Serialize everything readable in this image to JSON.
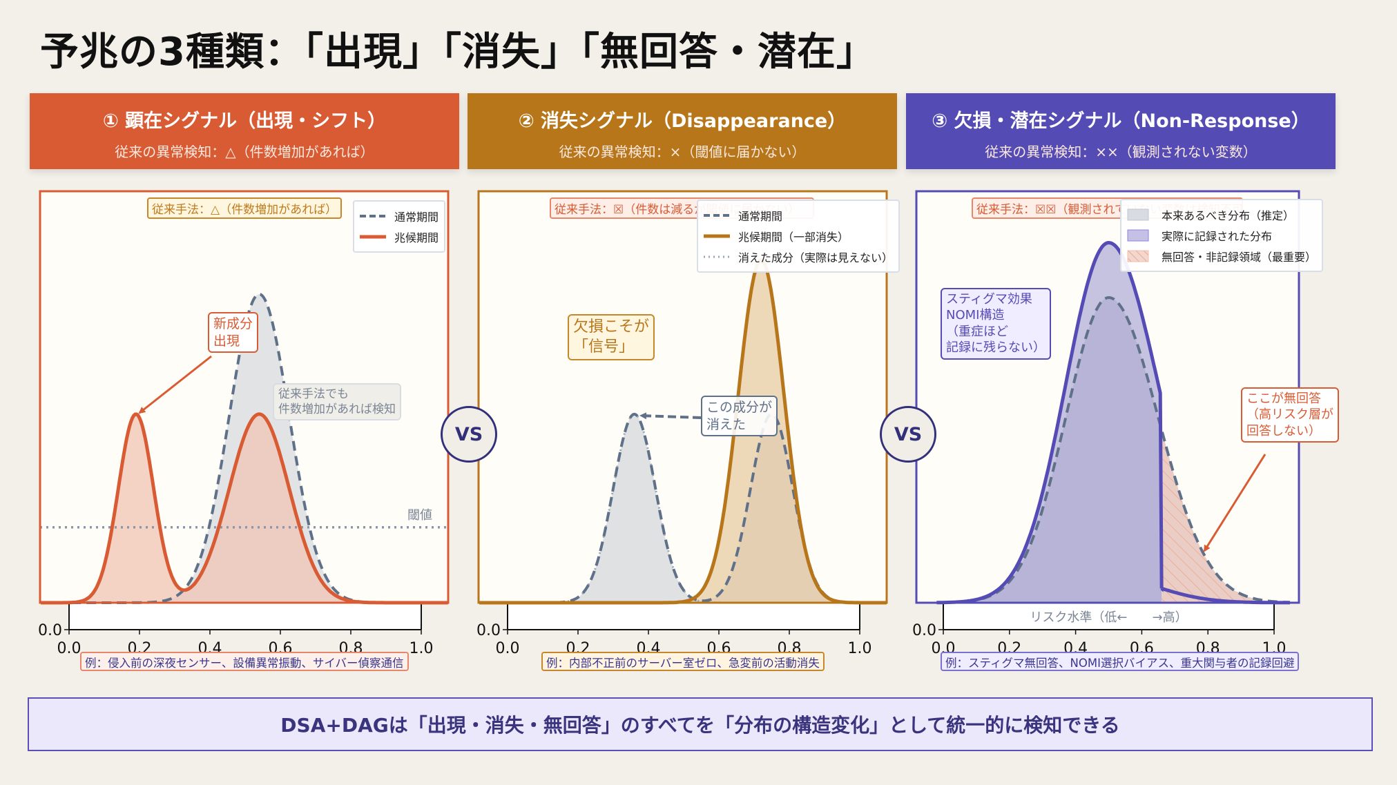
{
  "title": "予兆の3種類：「出現」「消失」「無回答・潜在」",
  "colors": {
    "emergence": "#d95b33",
    "disappearance": "#b8761a",
    "nonresponse": "#544bb5",
    "normal": "#5f7089",
    "background": "#f3f0ea"
  },
  "headers": [
    {
      "title": "① 顕在シグナル（出現・シフト）",
      "subtitle": "従来の異常検知：△（件数増加があれば）"
    },
    {
      "title": "② 消失シグナル（Disappearance）",
      "subtitle": "従来の異常検知：×（閾値に届かない）"
    },
    {
      "title": "③ 欠損・潜在シグナル（Non-Response）",
      "subtitle": "従来の異常検知：××（観測されない変数）"
    }
  ],
  "vs_label": "VS",
  "panels": [
    {
      "method_label": "従来手法：△（件数増加があれば）",
      "legend": [
        "通常期間",
        "兆候期間"
      ],
      "notes": {
        "new": "新成分\n出現",
        "detect": "従来手法でも\n件数増加があれば検知",
        "threshold": "閾値"
      },
      "example": "例：侵入前の深夜センサー、設備異常振動、サイバー偵察通信"
    },
    {
      "method_label": "従来手法：☒（件数は減るが閾値に届かない）",
      "legend": [
        "通常期間",
        "兆候期間（一部消失）",
        "消えた成分（実際は見えない）"
      ],
      "notes": {
        "signal": "欠損こそが\n「信号」",
        "vanished": "この成分が\n消えた"
      },
      "example": "例：内部不正前のサーバー室ゼロ、急変前の活動消失"
    },
    {
      "method_label": "従来手法：☒☒（観測されていない変数は検知不可）",
      "legend": [
        "本来あるべき分布（推定）",
        "実際に記録された分布",
        "無回答・非記録領域（最重要）"
      ],
      "notes": {
        "stigma": "スティグマ効果\nNOMI構造\n（重症ほど\n記録に残らない）",
        "nonresp": "ここが無回答\n（高リスク層が\n回答しない）"
      },
      "xlabel": "リスク水準（低←　　→高）",
      "example": "例：スティグマ無回答、NOMI選択バイアス、重大関与者の記録回避"
    }
  ],
  "banner": "DSA+DAGは「出現・消失・無回答」のすべてを「分布の構造変化」として統一的に検知できる",
  "chart_data": [
    {
      "type": "area",
      "xlim": [
        -0.08,
        1.08
      ],
      "ylim": [
        0,
        1.2
      ],
      "xticks": [
        "0.0",
        "0.2",
        "0.4",
        "0.6",
        "0.8",
        "1.0"
      ],
      "yticks": [
        "0.0"
      ],
      "series": [
        {
          "name": "通常期間",
          "style": "dashed",
          "components": [
            {
              "mean": 0.54,
              "sd": 0.085,
              "amp": 0.9
            }
          ]
        },
        {
          "name": "兆候期間",
          "style": "solid",
          "components": [
            {
              "mean": 0.19,
              "sd": 0.05,
              "amp": 0.55
            },
            {
              "mean": 0.54,
              "sd": 0.085,
              "amp": 0.55
            }
          ]
        }
      ],
      "threshold": 0.22
    },
    {
      "type": "area",
      "xlim": [
        -0.08,
        1.08
      ],
      "ylim": [
        0,
        1.2
      ],
      "xticks": [
        "0.0",
        "0.2",
        "0.4",
        "0.6",
        "0.8",
        "1.0"
      ],
      "yticks": [
        "0.0"
      ],
      "series": [
        {
          "name": "通常期間",
          "style": "dashed",
          "components": [
            {
              "mean": 0.36,
              "sd": 0.06,
              "amp": 0.55
            },
            {
              "mean": 0.75,
              "sd": 0.06,
              "amp": 0.55
            }
          ]
        },
        {
          "name": "兆候期間（一部消失）",
          "style": "solid",
          "components": [
            {
              "mean": 0.72,
              "sd": 0.065,
              "amp": 1.0
            }
          ]
        },
        {
          "name": "消えた成分（実際は見えない）",
          "style": "dotted",
          "components": [
            {
              "mean": 0.36,
              "sd": 0.06,
              "amp": 0.55
            }
          ]
        }
      ]
    },
    {
      "type": "area",
      "xlim": [
        -0.08,
        1.08
      ],
      "ylim": [
        0,
        1.2
      ],
      "xticks": [
        "0.0",
        "0.2",
        "0.4",
        "0.6",
        "0.8",
        "1.0"
      ],
      "yticks": [
        "0.0"
      ],
      "series": [
        {
          "name": "本来あるべき分布（推定）",
          "style": "dashed",
          "components": [
            {
              "mean": 0.5,
              "sd": 0.13,
              "sd_right": 0.15,
              "amp": 0.89
            }
          ]
        },
        {
          "name": "実際に記録された分布",
          "style": "solid",
          "components": [
            {
              "mean": 0.5,
              "sd": 0.13,
              "sd_right": 0.15,
              "amp": 1.05
            }
          ],
          "cutoff": 0.66,
          "after_cutoff_factor": 0.07
        },
        {
          "name": "無回答・非記録領域（最重要）",
          "style": "hatched"
        }
      ]
    }
  ]
}
